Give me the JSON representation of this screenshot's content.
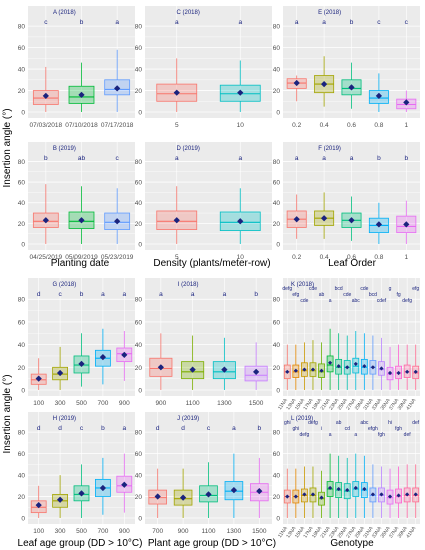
{
  "axis_titles": {
    "y": "Insertion angle (°)",
    "x_row1": "Planting date",
    "x_row1b": "Density (plants/meter-row)",
    "x_row1c": "Leaf Order",
    "x_row2": "Leaf age group (DD > 10°C)",
    "x_row2b": "Plant age group (DD > 10°C)",
    "x_row2c": "Genotype"
  },
  "colors": {
    "panel_bg": "#ebebeb",
    "grid": "#ffffff",
    "mean_marker": "#1a237e",
    "panel_title": "#1a237e",
    "letters": "#1a237e"
  },
  "chart_data": [
    {
      "id": "A",
      "type": "box",
      "title": "A (2018)",
      "ylim": [
        0,
        80
      ],
      "yticks": [
        0,
        20,
        40,
        60,
        80
      ],
      "categories": [
        "07/03/2018",
        "07/10/2018",
        "07/17/2018"
      ],
      "colors": [
        "#f8766d",
        "#00ba38",
        "#619cff"
      ],
      "letters": [
        "c",
        "b",
        "a"
      ],
      "boxes": [
        {
          "min": 0,
          "q1": 7,
          "median": 13,
          "q3": 20,
          "max": 42,
          "mean": 15
        },
        {
          "min": 0,
          "q1": 8,
          "median": 14,
          "q3": 24,
          "max": 46,
          "mean": 16
        },
        {
          "min": 0,
          "q1": 16,
          "median": 21,
          "q3": 30,
          "max": 58,
          "mean": 22
        }
      ]
    },
    {
      "id": "C",
      "type": "box",
      "title": "C (2018)",
      "ylim": [
        0,
        80
      ],
      "yticks": [
        0,
        20,
        40,
        60,
        80
      ],
      "categories": [
        "5",
        "10"
      ],
      "colors": [
        "#f8766d",
        "#00bfc4"
      ],
      "letters": [
        "a",
        "a"
      ],
      "boxes": [
        {
          "min": 0,
          "q1": 10,
          "median": 17,
          "q3": 26,
          "max": 50,
          "mean": 18
        },
        {
          "min": 0,
          "q1": 10,
          "median": 17,
          "q3": 25,
          "max": 48,
          "mean": 18
        }
      ]
    },
    {
      "id": "E",
      "type": "box",
      "title": "E (2018)",
      "ylim": [
        0,
        80
      ],
      "yticks": [
        0,
        20,
        40,
        60,
        80
      ],
      "categories": [
        "0.2",
        "0.4",
        "0.6",
        "0.8",
        "1"
      ],
      "colors": [
        "#f8766d",
        "#a3a500",
        "#00bf7d",
        "#00b0f6",
        "#e76bf3"
      ],
      "letters": [
        "a",
        "a",
        "b",
        "c",
        "c"
      ],
      "boxes": [
        {
          "min": 10,
          "q1": 22,
          "median": 27,
          "q3": 31,
          "max": 34,
          "mean": 27
        },
        {
          "min": 5,
          "q1": 18,
          "median": 26,
          "q3": 34,
          "max": 52,
          "mean": 26
        },
        {
          "min": 3,
          "q1": 16,
          "median": 22,
          "q3": 30,
          "max": 46,
          "mean": 23
        },
        {
          "min": 0,
          "q1": 8,
          "median": 13,
          "q3": 20,
          "max": 36,
          "mean": 15
        },
        {
          "min": 0,
          "q1": 3,
          "median": 7,
          "q3": 12,
          "max": 20,
          "mean": 9
        }
      ]
    },
    {
      "id": "B",
      "type": "box",
      "title": "B (2019)",
      "ylim": [
        0,
        80
      ],
      "yticks": [
        0,
        20,
        40,
        60,
        80
      ],
      "categories": [
        "04/25/2019",
        "05/09/2019",
        "05/23/2019"
      ],
      "colors": [
        "#f8766d",
        "#00ba38",
        "#619cff"
      ],
      "letters": [
        "b",
        "ab",
        "c"
      ],
      "boxes": [
        {
          "min": 0,
          "q1": 16,
          "median": 22,
          "q3": 30,
          "max": 58,
          "mean": 23
        },
        {
          "min": 0,
          "q1": 15,
          "median": 22,
          "q3": 31,
          "max": 56,
          "mean": 23
        },
        {
          "min": 0,
          "q1": 14,
          "median": 21,
          "q3": 30,
          "max": 54,
          "mean": 22
        }
      ]
    },
    {
      "id": "D",
      "type": "box",
      "title": "D (2019)",
      "ylim": [
        0,
        80
      ],
      "yticks": [
        0,
        20,
        40,
        60,
        80
      ],
      "categories": [
        "5",
        "10"
      ],
      "colors": [
        "#f8766d",
        "#00bfc4"
      ],
      "letters": [
        "a",
        "a"
      ],
      "boxes": [
        {
          "min": 0,
          "q1": 14,
          "median": 22,
          "q3": 32,
          "max": 56,
          "mean": 23
        },
        {
          "min": 0,
          "q1": 13,
          "median": 21,
          "q3": 31,
          "max": 54,
          "mean": 22
        }
      ]
    },
    {
      "id": "F",
      "type": "box",
      "title": "F (2019)",
      "ylim": [
        0,
        80
      ],
      "yticks": [
        0,
        20,
        40,
        60,
        80
      ],
      "categories": [
        "0.2",
        "0.4",
        "0.6",
        "0.8",
        "1"
      ],
      "colors": [
        "#f8766d",
        "#a3a500",
        "#00bf7d",
        "#00b0f6",
        "#e76bf3"
      ],
      "letters": [
        "a",
        "a",
        "a",
        "b",
        "b"
      ],
      "boxes": [
        {
          "min": 5,
          "q1": 16,
          "median": 24,
          "q3": 32,
          "max": 48,
          "mean": 24
        },
        {
          "min": 5,
          "q1": 18,
          "median": 25,
          "q3": 32,
          "max": 50,
          "mean": 25
        },
        {
          "min": 3,
          "q1": 16,
          "median": 23,
          "q3": 30,
          "max": 46,
          "mean": 23
        },
        {
          "min": 0,
          "q1": 11,
          "median": 18,
          "q3": 25,
          "max": 40,
          "mean": 19
        },
        {
          "min": 0,
          "q1": 11,
          "median": 17,
          "q3": 27,
          "max": 42,
          "mean": 19
        }
      ]
    },
    {
      "id": "G",
      "type": "box",
      "title": "G (2018)",
      "ylim": [
        0,
        80
      ],
      "yticks": [
        0,
        20,
        40,
        60,
        80
      ],
      "categories": [
        "100",
        "300",
        "500",
        "700",
        "900"
      ],
      "colors": [
        "#f8766d",
        "#a3a500",
        "#00bf7d",
        "#00b0f6",
        "#e76bf3"
      ],
      "letters": [
        "d",
        "c",
        "b",
        "a",
        "a"
      ],
      "boxes": [
        {
          "min": 0,
          "q1": 5,
          "median": 9,
          "q3": 14,
          "max": 28,
          "mean": 10
        },
        {
          "min": 0,
          "q1": 9,
          "median": 14,
          "q3": 20,
          "max": 38,
          "mean": 15
        },
        {
          "min": 3,
          "q1": 15,
          "median": 22,
          "q3": 30,
          "max": 50,
          "mean": 23
        },
        {
          "min": 5,
          "q1": 21,
          "median": 28,
          "q3": 35,
          "max": 54,
          "mean": 29
        },
        {
          "min": 8,
          "q1": 25,
          "median": 32,
          "q3": 37,
          "max": 52,
          "mean": 31
        }
      ]
    },
    {
      "id": "I",
      "type": "box",
      "title": "I (2018)",
      "ylim": [
        0,
        80
      ],
      "yticks": [
        0,
        20,
        40,
        60,
        80
      ],
      "categories": [
        "900",
        "1100",
        "1300",
        "1500"
      ],
      "colors": [
        "#f8766d",
        "#7cae00",
        "#00bfc4",
        "#c77cff"
      ],
      "letters": [
        "a",
        "a",
        "a",
        "b"
      ],
      "boxes": [
        {
          "min": 0,
          "q1": 12,
          "median": 19,
          "q3": 28,
          "max": 50,
          "mean": 20
        },
        {
          "min": 0,
          "q1": 10,
          "median": 16,
          "q3": 25,
          "max": 48,
          "mean": 18
        },
        {
          "min": 0,
          "q1": 10,
          "median": 16,
          "q3": 25,
          "max": 46,
          "mean": 18
        },
        {
          "min": 0,
          "q1": 8,
          "median": 13,
          "q3": 21,
          "max": 42,
          "mean": 16
        }
      ]
    },
    {
      "id": "K",
      "type": "box",
      "title": "K (2018)",
      "ylim": [
        0,
        80
      ],
      "yticks": [
        0,
        20,
        40,
        60,
        80
      ],
      "categories": [
        "11NA",
        "13NA",
        "15NA",
        "17NA",
        "19NA",
        "21NA",
        "23NA",
        "25NA",
        "27NA",
        "29NA",
        "31NA",
        "33NA",
        "35NA",
        "37NA",
        "39NA",
        "41NA"
      ],
      "colors": [
        "#f8766d",
        "#e58700",
        "#c99800",
        "#a3a500",
        "#6bb100",
        "#00ba38",
        "#00bf7d",
        "#00c0af",
        "#00bcd8",
        "#00b0f6",
        "#619cff",
        "#b983ff",
        "#e76bf3",
        "#fd61d1",
        "#ff67a4",
        "#ff6c91"
      ],
      "letters": [
        "defg",
        "efg",
        "cde",
        "cde",
        "ab",
        "a",
        "bcd",
        "cde",
        "abc",
        "cde",
        "bcd",
        "cdef",
        "g",
        "fg",
        "defg",
        "efg"
      ],
      "boxes": [
        {
          "min": 0,
          "q1": 10,
          "median": 16,
          "q3": 22,
          "max": 40,
          "mean": 16
        },
        {
          "min": 0,
          "q1": 11,
          "median": 16,
          "q3": 22,
          "max": 40,
          "mean": 17
        },
        {
          "min": 0,
          "q1": 12,
          "median": 17,
          "q3": 24,
          "max": 42,
          "mean": 18
        },
        {
          "min": 0,
          "q1": 12,
          "median": 17,
          "q3": 24,
          "max": 44,
          "mean": 18
        },
        {
          "min": 0,
          "q1": 11,
          "median": 16,
          "q3": 23,
          "max": 42,
          "mean": 17
        },
        {
          "min": 0,
          "q1": 16,
          "median": 22,
          "q3": 30,
          "max": 54,
          "mean": 24
        },
        {
          "min": 0,
          "q1": 14,
          "median": 20,
          "q3": 27,
          "max": 50,
          "mean": 21
        },
        {
          "min": 0,
          "q1": 14,
          "median": 20,
          "q3": 26,
          "max": 48,
          "mean": 20
        },
        {
          "min": 0,
          "q1": 15,
          "median": 21,
          "q3": 28,
          "max": 52,
          "mean": 23
        },
        {
          "min": 0,
          "q1": 14,
          "median": 20,
          "q3": 27,
          "max": 50,
          "mean": 21
        },
        {
          "min": 0,
          "q1": 14,
          "median": 20,
          "q3": 26,
          "max": 48,
          "mean": 20
        },
        {
          "min": 0,
          "q1": 13,
          "median": 18,
          "q3": 25,
          "max": 46,
          "mean": 19
        },
        {
          "min": 0,
          "q1": 9,
          "median": 14,
          "q3": 20,
          "max": 38,
          "mean": 15
        },
        {
          "min": 0,
          "q1": 10,
          "median": 15,
          "q3": 21,
          "max": 40,
          "mean": 15
        },
        {
          "min": 0,
          "q1": 11,
          "median": 16,
          "q3": 22,
          "max": 40,
          "mean": 16
        },
        {
          "min": 0,
          "q1": 10,
          "median": 15,
          "q3": 21,
          "max": 40,
          "mean": 16
        }
      ]
    },
    {
      "id": "H",
      "type": "box",
      "title": "H (2019)",
      "ylim": [
        0,
        80
      ],
      "yticks": [
        0,
        20,
        40,
        60,
        80
      ],
      "categories": [
        "100",
        "300",
        "500",
        "700",
        "900"
      ],
      "colors": [
        "#f8766d",
        "#a3a500",
        "#00bf7d",
        "#00b0f6",
        "#e76bf3"
      ],
      "letters": [
        "d",
        "d",
        "c",
        "b",
        "a"
      ],
      "boxes": [
        {
          "min": 0,
          "q1": 5,
          "median": 10,
          "q3": 16,
          "max": 30,
          "mean": 12
        },
        {
          "min": 0,
          "q1": 10,
          "median": 16,
          "q3": 22,
          "max": 40,
          "mean": 17
        },
        {
          "min": 0,
          "q1": 16,
          "median": 22,
          "q3": 30,
          "max": 50,
          "mean": 23
        },
        {
          "min": 3,
          "q1": 20,
          "median": 28,
          "q3": 36,
          "max": 56,
          "mean": 28
        },
        {
          "min": 5,
          "q1": 24,
          "median": 30,
          "q3": 39,
          "max": 60,
          "mean": 31
        }
      ]
    },
    {
      "id": "J",
      "type": "box",
      "title": "J (2019)",
      "ylim": [
        0,
        80
      ],
      "yticks": [
        0,
        20,
        40,
        60,
        80
      ],
      "categories": [
        "700",
        "900",
        "1100",
        "1300",
        "1500"
      ],
      "colors": [
        "#f8766d",
        "#a3a500",
        "#00bf7d",
        "#00b0f6",
        "#e76bf3"
      ],
      "letters": [
        "d",
        "d",
        "c",
        "a",
        "b"
      ],
      "boxes": [
        {
          "min": 0,
          "q1": 13,
          "median": 19,
          "q3": 26,
          "max": 46,
          "mean": 20
        },
        {
          "min": 0,
          "q1": 12,
          "median": 18,
          "q3": 26,
          "max": 46,
          "mean": 19
        },
        {
          "min": 0,
          "q1": 15,
          "median": 21,
          "q3": 30,
          "max": 52,
          "mean": 22
        },
        {
          "min": 0,
          "q1": 17,
          "median": 25,
          "q3": 34,
          "max": 60,
          "mean": 26
        },
        {
          "min": 0,
          "q1": 16,
          "median": 24,
          "q3": 32,
          "max": 56,
          "mean": 25
        }
      ]
    },
    {
      "id": "L",
      "type": "box",
      "title": "L (2019)",
      "ylim": [
        0,
        80
      ],
      "yticks": [
        0,
        20,
        40,
        60,
        80
      ],
      "categories": [
        "11NA",
        "13NA",
        "15NA",
        "17NA",
        "19NA",
        "21NA",
        "23NA",
        "25NA",
        "27NA",
        "29NA",
        "31NA",
        "33NA",
        "35NA",
        "37NA",
        "39NA",
        "41NA"
      ],
      "colors": [
        "#f8766d",
        "#e58700",
        "#c99800",
        "#a3a500",
        "#6bb100",
        "#00ba38",
        "#00bf7d",
        "#00c0af",
        "#00bcd8",
        "#00b0f6",
        "#619cff",
        "#b983ff",
        "#e76bf3",
        "#fd61d1",
        "#ff67a4",
        "#ff6c91"
      ],
      "letters": [
        "ghi",
        "ghi",
        "defg",
        "defg",
        "i",
        "a",
        "ab",
        "cd",
        "a",
        "abc",
        "efgh",
        "fgh",
        "hi",
        "fgh",
        "def",
        "def"
      ],
      "boxes": [
        {
          "min": 0,
          "q1": 14,
          "median": 20,
          "q3": 26,
          "max": 46,
          "mean": 20
        },
        {
          "min": 0,
          "q1": 14,
          "median": 20,
          "q3": 26,
          "max": 46,
          "mean": 20
        },
        {
          "min": 0,
          "q1": 15,
          "median": 21,
          "q3": 27,
          "max": 48,
          "mean": 22
        },
        {
          "min": 0,
          "q1": 15,
          "median": 21,
          "q3": 28,
          "max": 48,
          "mean": 22
        },
        {
          "min": 0,
          "q1": 12,
          "median": 18,
          "q3": 24,
          "max": 44,
          "mean": 19
        },
        {
          "min": 0,
          "q1": 20,
          "median": 27,
          "q3": 34,
          "max": 60,
          "mean": 28
        },
        {
          "min": 0,
          "q1": 19,
          "median": 26,
          "q3": 33,
          "max": 58,
          "mean": 27
        },
        {
          "min": 0,
          "q1": 18,
          "median": 25,
          "q3": 32,
          "max": 56,
          "mean": 26
        },
        {
          "min": 0,
          "q1": 20,
          "median": 27,
          "q3": 34,
          "max": 60,
          "mean": 28
        },
        {
          "min": 0,
          "q1": 19,
          "median": 26,
          "q3": 33,
          "max": 58,
          "mean": 27
        },
        {
          "min": 0,
          "q1": 15,
          "median": 21,
          "q3": 28,
          "max": 50,
          "mean": 22
        },
        {
          "min": 0,
          "q1": 15,
          "median": 21,
          "q3": 28,
          "max": 48,
          "mean": 22
        },
        {
          "min": 0,
          "q1": 13,
          "median": 19,
          "q3": 26,
          "max": 46,
          "mean": 20
        },
        {
          "min": 0,
          "q1": 14,
          "median": 20,
          "q3": 27,
          "max": 48,
          "mean": 21
        },
        {
          "min": 0,
          "q1": 15,
          "median": 21,
          "q3": 28,
          "max": 50,
          "mean": 22
        },
        {
          "min": 0,
          "q1": 15,
          "median": 21,
          "q3": 28,
          "max": 50,
          "mean": 22
        }
      ]
    }
  ]
}
